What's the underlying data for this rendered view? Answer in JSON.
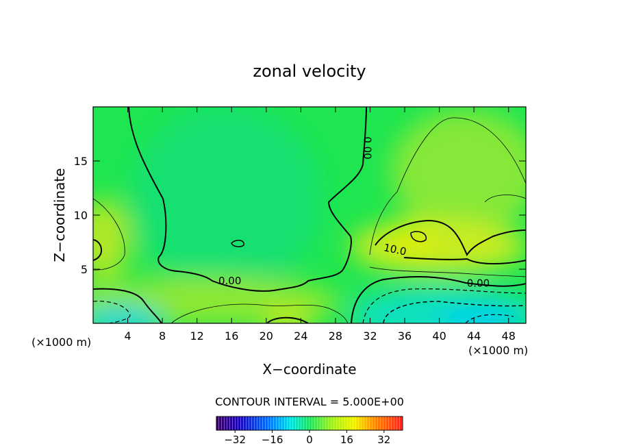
{
  "chart_data": {
    "type": "contour",
    "title": "zonal velocity",
    "xlabel": "X−coordinate",
    "ylabel": "Z−coordinate",
    "x_unit_left": "(×1000 m)",
    "x_unit_right": "(×1000 m)",
    "xlim": [
      0,
      50
    ],
    "ylim": [
      0,
      20
    ],
    "x_ticks": [
      4,
      8,
      12,
      16,
      20,
      24,
      28,
      32,
      36,
      40,
      44,
      48
    ],
    "y_ticks": [
      5,
      10,
      15
    ],
    "contour_interval_text": "CONTOUR INTERVAL = 5.000E+00",
    "contour_labels": [
      {
        "text": "0.00",
        "x": 31.3,
        "y": 16.2
      },
      {
        "text": "0.00",
        "x": 15.8,
        "y": 3.6
      },
      {
        "text": "10.0",
        "x": 34.8,
        "y": 6.5
      },
      {
        "text": "0.00",
        "x": 44.5,
        "y": 3.4
      }
    ],
    "colorbar": {
      "range": [
        -40,
        40
      ],
      "ticks": [
        -32,
        -16,
        0,
        16,
        32
      ],
      "tick_labels": [
        "−32",
        "−16",
        "0",
        "16",
        "32"
      ]
    }
  }
}
